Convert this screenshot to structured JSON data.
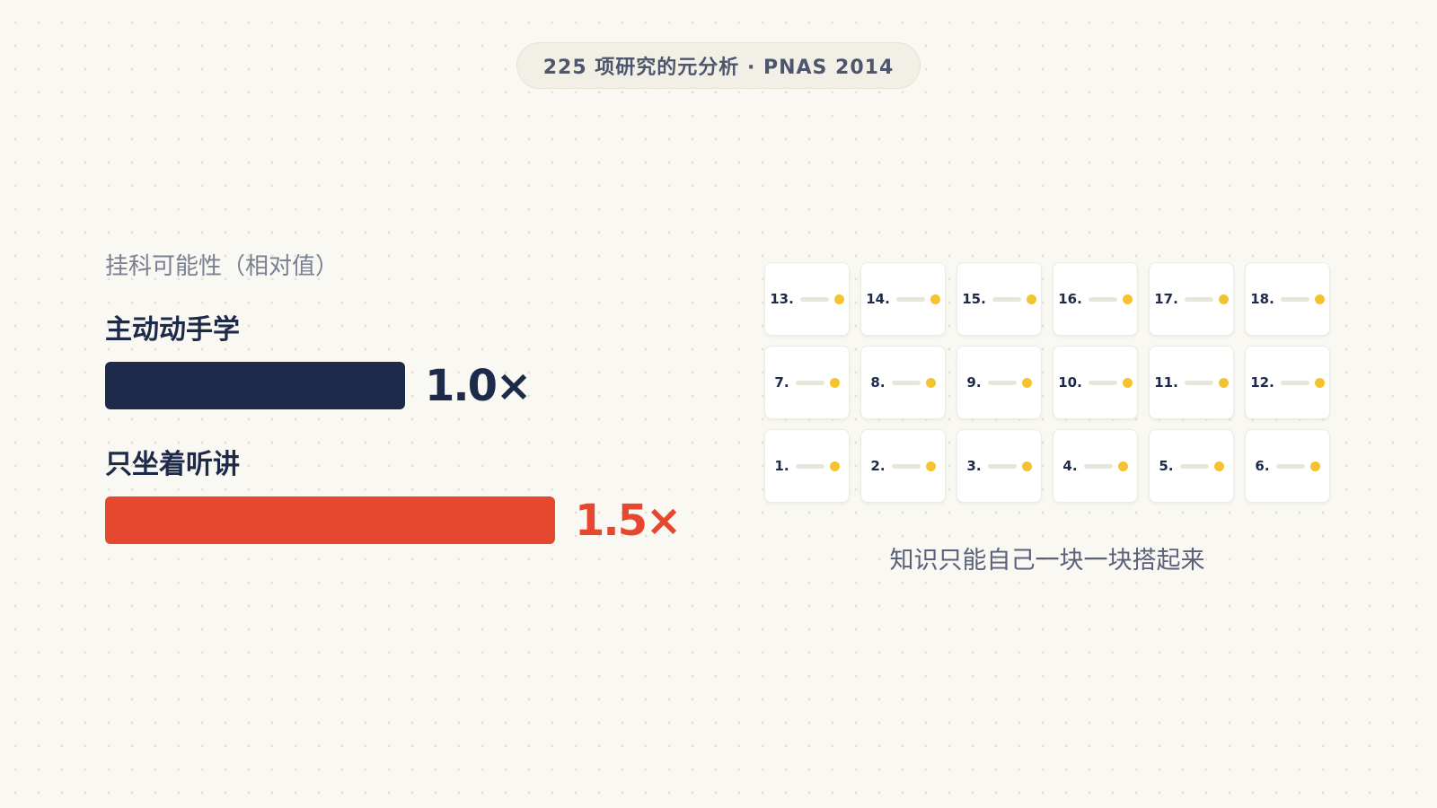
{
  "header": {
    "source": "225 项研究的元分析 · PNAS 2014"
  },
  "chart_data": {
    "type": "bar",
    "title": "挂科可能性（相对值）",
    "categories": [
      "主动动手学",
      "只坐着听讲"
    ],
    "values": [
      1.0,
      1.5
    ],
    "value_labels": [
      "1.0×",
      "1.5×"
    ],
    "colors": [
      "#1e2a4a",
      "#e5482e"
    ]
  },
  "blocks": {
    "rows": [
      [
        "13.",
        "14.",
        "15.",
        "16.",
        "17.",
        "18."
      ],
      [
        "7.",
        "8.",
        "9.",
        "10.",
        "11.",
        "12."
      ],
      [
        "1.",
        "2.",
        "3.",
        "4.",
        "5.",
        "6."
      ]
    ],
    "caption": "知识只能自己一块一块搭起来",
    "dot_color": "#f5c332"
  }
}
